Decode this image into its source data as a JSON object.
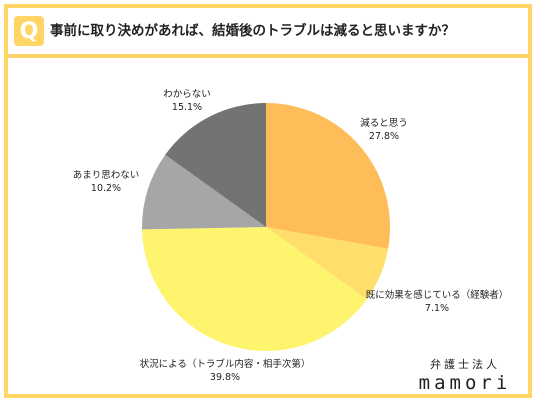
{
  "header": {
    "badge": "Q",
    "question": "事前に取り決めがあれば、結婚後のトラブルは減ると思いますか？"
  },
  "chart_data": {
    "type": "pie",
    "title": "",
    "start_angle_deg": 0,
    "direction": "clockwise",
    "slices": [
      {
        "label": "減ると思う",
        "value": 27.8,
        "value_label": "27.8%",
        "color": "#ffbd59"
      },
      {
        "label": "既に効果を感じている（経験者）",
        "value": 7.1,
        "value_label": "7.1%",
        "color": "#ffde6b"
      },
      {
        "label": "状況による（トラブル内容・相手次第）",
        "value": 39.8,
        "value_label": "39.8%",
        "color": "#fff46e"
      },
      {
        "label": "あまり思わない",
        "value": 10.2,
        "value_label": "10.2%",
        "color": "#a6a6a6"
      },
      {
        "label": "わからない",
        "value": 15.1,
        "value_label": "15.1%",
        "color": "#737373"
      }
    ]
  },
  "brand": {
    "top": "弁護士法人",
    "name": "mamori"
  }
}
